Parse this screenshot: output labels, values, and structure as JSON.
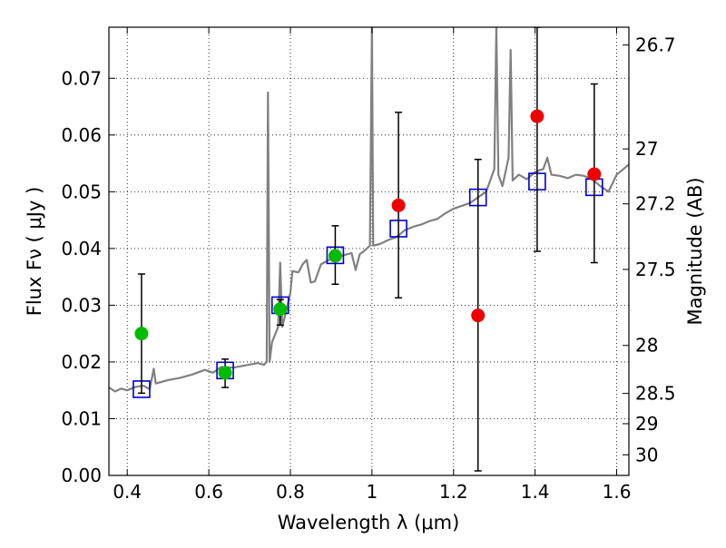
{
  "chart_data": {
    "type": "scatter",
    "xlabel": "Wavelength  λ (μm)",
    "ylabel": "Flux  Fν  ( μJy )",
    "y2label": "Magnitude (AB)",
    "xlim": [
      0.355,
      1.63
    ],
    "ylim": [
      0.0,
      0.079
    ],
    "grid": true,
    "x_ticks": [
      {
        "value": 0.4,
        "label": "0.4"
      },
      {
        "value": 0.6,
        "label": "0.6"
      },
      {
        "value": 0.8,
        "label": "0.8"
      },
      {
        "value": 1.0,
        "label": "1"
      },
      {
        "value": 1.2,
        "label": "1.2"
      },
      {
        "value": 1.4,
        "label": "1.4"
      },
      {
        "value": 1.6,
        "label": "1.6"
      }
    ],
    "y_ticks": [
      {
        "value": 0.0,
        "label": "0.00"
      },
      {
        "value": 0.01,
        "label": "0.01"
      },
      {
        "value": 0.02,
        "label": "0.02"
      },
      {
        "value": 0.03,
        "label": "0.03"
      },
      {
        "value": 0.04,
        "label": "0.04"
      },
      {
        "value": 0.05,
        "label": "0.05"
      },
      {
        "value": 0.06,
        "label": "0.06"
      },
      {
        "value": 0.07,
        "label": "0.07"
      }
    ],
    "y2_ticks": [
      {
        "value": 26.7,
        "label": "26.7"
      },
      {
        "value": 27.0,
        "label": "27"
      },
      {
        "value": 27.2,
        "label": "27.2"
      },
      {
        "value": 27.5,
        "label": "27.5"
      },
      {
        "value": 28.0,
        "label": "28"
      },
      {
        "value": 28.5,
        "label": "28.5"
      },
      {
        "value": 29.0,
        "label": "29"
      },
      {
        "value": 30.0,
        "label": "30"
      }
    ],
    "series": [
      {
        "kind": "spectrum",
        "color": "#808080",
        "points": [
          [
            0.355,
            0.0155
          ],
          [
            0.37,
            0.0148
          ],
          [
            0.385,
            0.0153
          ],
          [
            0.4,
            0.015
          ],
          [
            0.42,
            0.0156
          ],
          [
            0.44,
            0.0158
          ],
          [
            0.455,
            0.0152
          ],
          [
            0.465,
            0.0188
          ],
          [
            0.47,
            0.0162
          ],
          [
            0.5,
            0.0168
          ],
          [
            0.53,
            0.0172
          ],
          [
            0.56,
            0.0178
          ],
          [
            0.59,
            0.0186
          ],
          [
            0.61,
            0.0181
          ],
          [
            0.63,
            0.0191
          ],
          [
            0.66,
            0.019
          ],
          [
            0.69,
            0.0194
          ],
          [
            0.72,
            0.0198
          ],
          [
            0.735,
            0.0195
          ],
          [
            0.742,
            0.02
          ],
          [
            0.745,
            0.0675
          ],
          [
            0.749,
            0.02
          ],
          [
            0.755,
            0.0235
          ],
          [
            0.77,
            0.0262
          ],
          [
            0.775,
            0.0375
          ],
          [
            0.78,
            0.0262
          ],
          [
            0.79,
            0.029
          ],
          [
            0.8,
            0.0322
          ],
          [
            0.805,
            0.036
          ],
          [
            0.82,
            0.0358
          ],
          [
            0.83,
            0.0372
          ],
          [
            0.84,
            0.038
          ],
          [
            0.85,
            0.034
          ],
          [
            0.86,
            0.0342
          ],
          [
            0.875,
            0.0372
          ],
          [
            0.9,
            0.0382
          ],
          [
            0.92,
            0.0386
          ],
          [
            0.95,
            0.0392
          ],
          [
            0.96,
            0.0362
          ],
          [
            0.97,
            0.039
          ],
          [
            0.98,
            0.0395
          ],
          [
            0.995,
            0.0405
          ],
          [
            1.0,
            0.079
          ],
          [
            1.003,
            0.0405
          ],
          [
            1.02,
            0.0408
          ],
          [
            1.04,
            0.0415
          ],
          [
            1.06,
            0.042
          ],
          [
            1.08,
            0.0432
          ],
          [
            1.1,
            0.0438
          ],
          [
            1.12,
            0.0442
          ],
          [
            1.14,
            0.0448
          ],
          [
            1.16,
            0.0452
          ],
          [
            1.18,
            0.0462
          ],
          [
            1.2,
            0.047
          ],
          [
            1.22,
            0.0475
          ],
          [
            1.24,
            0.048
          ],
          [
            1.26,
            0.049
          ],
          [
            1.28,
            0.05
          ],
          [
            1.29,
            0.052
          ],
          [
            1.3,
            0.054
          ],
          [
            1.305,
            0.079
          ],
          [
            1.31,
            0.053
          ],
          [
            1.32,
            0.051
          ],
          [
            1.335,
            0.056
          ],
          [
            1.34,
            0.075
          ],
          [
            1.345,
            0.052
          ],
          [
            1.36,
            0.053
          ],
          [
            1.38,
            0.0522
          ],
          [
            1.4,
            0.0535
          ],
          [
            1.42,
            0.054
          ],
          [
            1.43,
            0.056
          ],
          [
            1.44,
            0.053
          ],
          [
            1.46,
            0.0528
          ],
          [
            1.48,
            0.0524
          ],
          [
            1.5,
            0.053
          ],
          [
            1.52,
            0.0528
          ],
          [
            1.54,
            0.0522
          ],
          [
            1.56,
            0.051
          ],
          [
            1.58,
            0.05
          ],
          [
            1.6,
            0.053
          ],
          [
            1.63,
            0.0548
          ]
        ]
      },
      {
        "kind": "model-boxes",
        "color": "#0000cc",
        "points": [
          [
            0.435,
            0.0152
          ],
          [
            0.64,
            0.0185
          ],
          [
            0.775,
            0.03
          ],
          [
            0.91,
            0.0388
          ],
          [
            1.065,
            0.0435
          ],
          [
            1.26,
            0.049
          ],
          [
            1.405,
            0.0518
          ],
          [
            1.545,
            0.0508
          ]
        ]
      },
      {
        "kind": "detections",
        "color": "#00bb00",
        "points": [
          {
            "x": 0.435,
            "y": 0.025,
            "lo": 0.0145,
            "hi": 0.0355
          },
          {
            "x": 0.64,
            "y": 0.0181,
            "lo": 0.0155,
            "hi": 0.0205
          },
          {
            "x": 0.775,
            "y": 0.0293,
            "lo": 0.0265,
            "hi": 0.031
          },
          {
            "x": 0.91,
            "y": 0.0387,
            "lo": 0.0337,
            "hi": 0.044
          }
        ]
      },
      {
        "kind": "upper-bands",
        "color": "#ee0000",
        "points": [
          {
            "x": 1.065,
            "y": 0.0476,
            "lo": 0.0313,
            "hi": 0.064
          },
          {
            "x": 1.26,
            "y": 0.0282,
            "lo": 0.0008,
            "hi": 0.0557
          },
          {
            "x": 1.405,
            "y": 0.0633,
            "lo": 0.0395,
            "hi": 0.079
          },
          {
            "x": 1.545,
            "y": 0.0531,
            "lo": 0.0375,
            "hi": 0.069
          }
        ]
      }
    ]
  }
}
